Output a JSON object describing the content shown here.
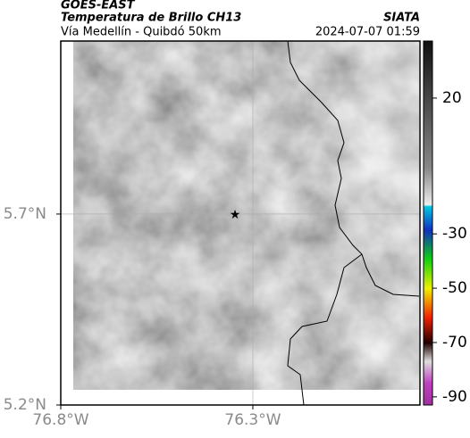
{
  "header": {
    "title": "GOES-EAST",
    "subtitle": "Temperatura de Brillo CH13",
    "location": "Vía Medellín - Quibdó 50km",
    "agency": "SIATA",
    "timestamp": "2024-07-07 01:59"
  },
  "map": {
    "xlim": [
      -76.8,
      -75.865
    ],
    "ylim": [
      5.2,
      6.153
    ],
    "xticks": [
      {
        "value": -76.8,
        "label": "76.8°W"
      },
      {
        "value": -76.3,
        "label": "76.3°W"
      }
    ],
    "yticks": [
      {
        "value": 5.2,
        "label": "5.2°N"
      },
      {
        "value": 5.7,
        "label": "5.7°N"
      }
    ],
    "grid": true
  },
  "colorbar": {
    "lim": [
      -93,
      41
    ],
    "ticks": [
      20,
      -30,
      -50,
      -70,
      -90
    ]
  }
}
